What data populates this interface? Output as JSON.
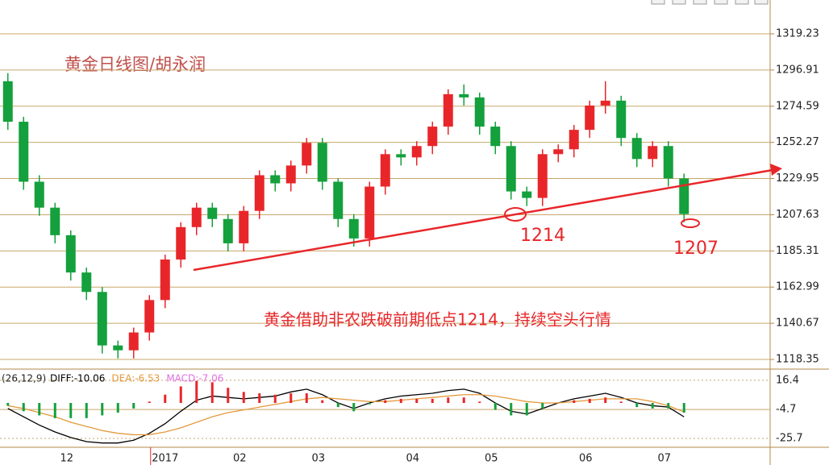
{
  "chart_data": [
    {
      "type": "candlestick",
      "title": "黄金日线图/胡永润",
      "categories": [
        null,
        null,
        null,
        null,
        "12",
        null,
        null,
        null,
        null,
        null,
        "2017",
        null,
        null,
        null,
        null,
        "02",
        null,
        null,
        null,
        null,
        "03",
        null,
        null,
        null,
        null,
        null,
        "04",
        null,
        null,
        null,
        null,
        "05",
        null,
        null,
        null,
        null,
        null,
        "06",
        null,
        null,
        null,
        null,
        "07",
        null
      ],
      "open": [
        1290,
        1265,
        1228,
        1212,
        1195,
        1172,
        1160,
        1127,
        1124,
        1135,
        1155,
        1180,
        1200,
        1212,
        1205,
        1190,
        1210,
        1232,
        1227,
        1238,
        1252,
        1228,
        1205,
        1193,
        1225,
        1245,
        1243,
        1250,
        1262,
        1282,
        1280,
        1262,
        1250,
        1222,
        1218,
        1245,
        1248,
        1260,
        1275,
        1278,
        1255,
        1242,
        1250,
        1230
      ],
      "high": [
        1295,
        1268,
        1232,
        1215,
        1198,
        1175,
        1163,
        1130,
        1138,
        1158,
        1183,
        1203,
        1215,
        1215,
        1208,
        1213,
        1235,
        1235,
        1241,
        1255,
        1255,
        1230,
        1208,
        1228,
        1248,
        1248,
        1253,
        1265,
        1285,
        1288,
        1283,
        1265,
        1253,
        1225,
        1248,
        1251,
        1263,
        1278,
        1290,
        1281,
        1258,
        1253,
        1253,
        1233
      ],
      "low": [
        1260,
        1223,
        1207,
        1190,
        1167,
        1155,
        1122,
        1119,
        1119,
        1130,
        1150,
        1175,
        1195,
        1200,
        1185,
        1185,
        1205,
        1222,
        1222,
        1233,
        1223,
        1200,
        1188,
        1188,
        1220,
        1238,
        1238,
        1245,
        1257,
        1275,
        1257,
        1245,
        1217,
        1213,
        1213,
        1240,
        1243,
        1255,
        1270,
        1250,
        1237,
        1237,
        1225,
        1203
      ],
      "close": [
        1265,
        1228,
        1212,
        1195,
        1172,
        1160,
        1127,
        1124,
        1135,
        1155,
        1180,
        1200,
        1212,
        1205,
        1190,
        1210,
        1232,
        1227,
        1238,
        1252,
        1228,
        1205,
        1193,
        1225,
        1245,
        1243,
        1250,
        1262,
        1282,
        1280,
        1262,
        1250,
        1222,
        1218,
        1245,
        1248,
        1260,
        1275,
        1278,
        1255,
        1242,
        1250,
        1230,
        1208
      ],
      "up_color": "#e8262a",
      "down_color": "#14a03c",
      "ylim": [
        1112.4,
        1340.1
      ],
      "yticks": [
        1319.23,
        1296.91,
        1274.59,
        1252.27,
        1229.95,
        1207.63,
        1185.31,
        1162.99,
        1140.67,
        1118.35
      ],
      "grid": true,
      "annotations": [
        "黄金借助非农跌破前期低点1214，持续空头行情",
        "1214",
        "1207"
      ]
    },
    {
      "type": "macd",
      "params_label": "(26,12,9)",
      "ylim": [
        -32.1,
        22.2
      ],
      "yticks": [
        16.4,
        -4.7,
        -25.7
      ],
      "series": [
        {
          "name": "DIFF",
          "legend_label": "DIFF:-10.06",
          "color": "#000000",
          "values": [
            -4,
            -10,
            -16,
            -21,
            -25,
            -28,
            -29,
            -29,
            -27,
            -22,
            -15,
            -6,
            2,
            5,
            4,
            3,
            4,
            5,
            8,
            10,
            6,
            0,
            -4,
            0,
            3,
            5,
            6,
            7,
            9,
            10,
            7,
            0,
            -6,
            -8,
            -4,
            0,
            3,
            5,
            7,
            4,
            0,
            -2,
            -3,
            -10.06
          ]
        },
        {
          "name": "DEA",
          "legend_label": "DEA:-6.53",
          "color": "#e39a3c",
          "values": [
            -2,
            -4,
            -7,
            -10,
            -14,
            -17,
            -20,
            -22,
            -23,
            -23,
            -21,
            -18,
            -14,
            -10,
            -7,
            -5,
            -3,
            -1,
            1,
            3,
            4,
            3,
            2,
            1,
            1,
            2,
            3,
            4,
            5,
            6,
            6,
            5,
            3,
            1,
            0,
            0,
            1,
            2,
            3,
            3,
            3,
            1,
            -2,
            -6.53
          ]
        },
        {
          "name": "MACD",
          "legend_label": "MACD:-7.06",
          "color": "#e070e0",
          "up_color": "#e8262a",
          "down_color": "#14a03c",
          "values": [
            -2,
            -6,
            -9,
            -11,
            -11,
            -11,
            -9,
            -7,
            -4,
            1,
            6,
            12,
            16,
            15,
            11,
            8,
            7,
            6,
            7,
            7,
            2,
            -3,
            -6,
            -1,
            2,
            3,
            3,
            3,
            4,
            4,
            1,
            -5,
            -9,
            -9,
            -4,
            0,
            2,
            3,
            4,
            1,
            -3,
            -4,
            -4,
            -7.06
          ]
        }
      ]
    }
  ]
}
